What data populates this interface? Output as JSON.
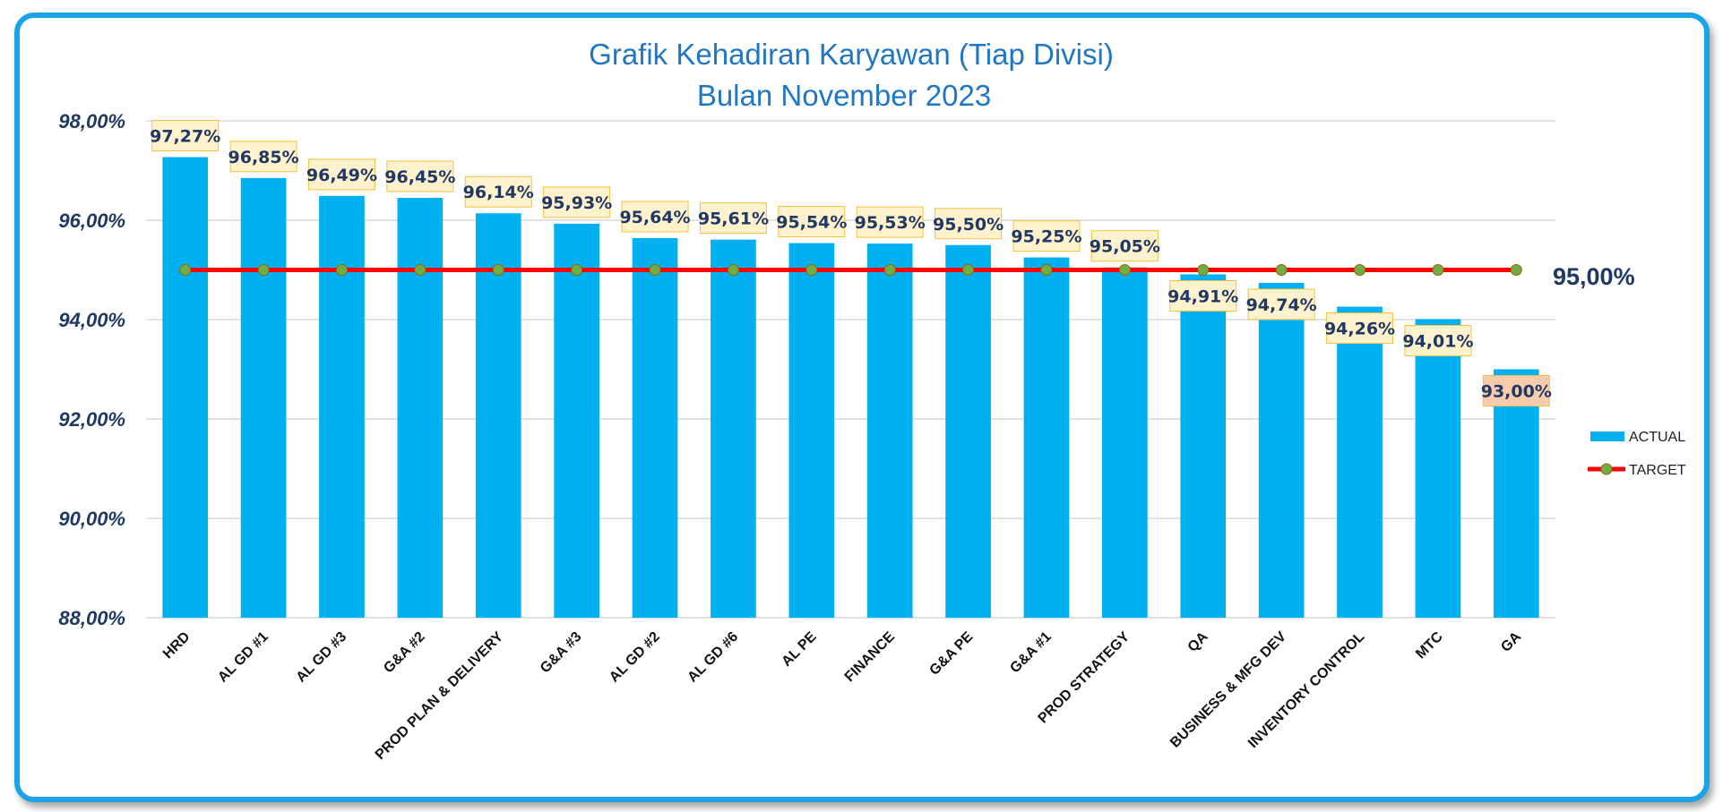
{
  "chart_data": {
    "type": "bar",
    "title": [
      "Grafik Kehadiran Karyawan (Tiap Divisi)",
      "Bulan November 2023"
    ],
    "categories": [
      "HRD",
      "AL GD #1",
      "AL GD #3",
      "G&A #2",
      "PROD PLAN & DELIVERY",
      "G&A #3",
      "AL GD #2",
      "AL GD #6",
      "AL PE",
      "FINANCE",
      "G&A PE",
      "G&A #1",
      "PROD STRATEGY",
      "QA",
      "BUSINESS & MFG DEV",
      "INVENTORY CONTROL",
      "MTC",
      "GA"
    ],
    "series": [
      {
        "name": "ACTUAL",
        "type": "bar",
        "values": [
          97.27,
          96.85,
          96.49,
          96.45,
          96.14,
          95.93,
          95.64,
          95.61,
          95.54,
          95.53,
          95.5,
          95.25,
          95.05,
          94.91,
          94.74,
          94.26,
          94.01,
          93.0
        ],
        "labels": [
          "97,27%",
          "96,85%",
          "96,49%",
          "96,45%",
          "96,14%",
          "95,93%",
          "95,64%",
          "95,61%",
          "95,54%",
          "95,53%",
          "95,50%",
          "95,25%",
          "95,05%",
          "94,91%",
          "94,74%",
          "94,26%",
          "94,01%",
          "93,00%"
        ],
        "color": "#00b0f0"
      },
      {
        "name": "TARGET",
        "type": "line",
        "value": 95.0,
        "label": "95,00%",
        "color": "#ff0000",
        "marker_color": "#70ad47"
      }
    ],
    "ylim": [
      88,
      98
    ],
    "yticks": [
      88,
      90,
      92,
      94,
      96,
      98
    ],
    "ytick_labels": [
      "88,00%",
      "90,00%",
      "92,00%",
      "94,00%",
      "96,00%",
      "98,00%"
    ],
    "grid": true,
    "legend_position": "right",
    "label_fill": "#fff2cc",
    "label_fill_below_target_min": "#f8cbad",
    "frame_color": "#1aa3e8",
    "xlabel": "",
    "ylabel": ""
  }
}
